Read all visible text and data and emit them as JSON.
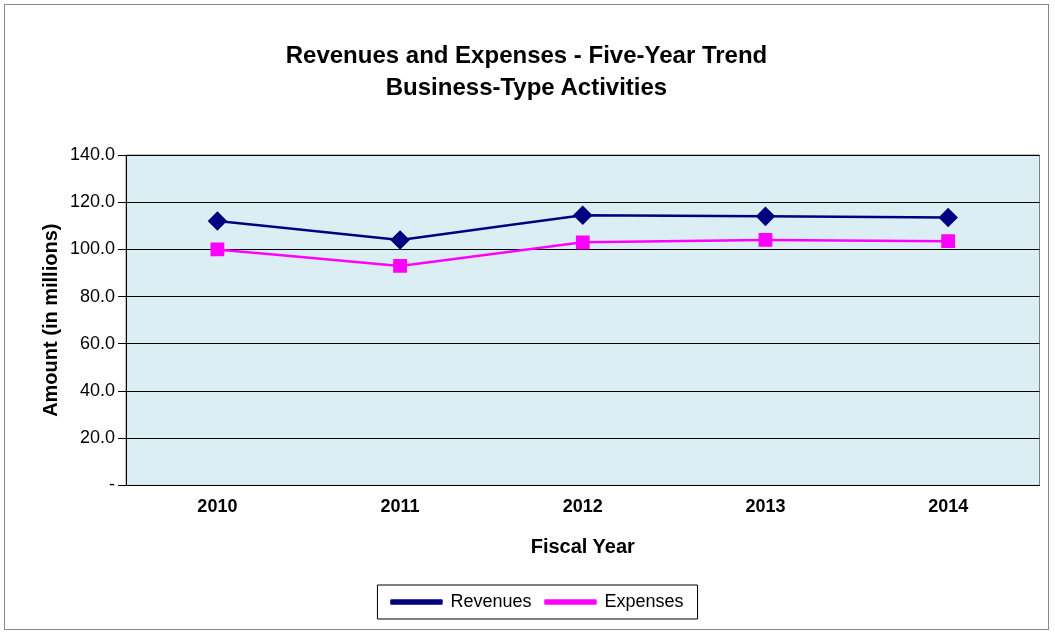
{
  "chart_data": {
    "type": "line",
    "title": "Revenues and Expenses - Five-Year Trend\nBusiness-Type  Activities",
    "xlabel": "Fiscal Year",
    "ylabel": "Amount (in millions)",
    "categories": [
      "2010",
      "2011",
      "2012",
      "2013",
      "2014"
    ],
    "series": [
      {
        "name": "Revenues",
        "color": "#000080",
        "marker": "diamond",
        "values": [
          112,
          104,
          114.5,
          114,
          113.5
        ]
      },
      {
        "name": "Expenses",
        "color": "#ff00ff",
        "marker": "square",
        "values": [
          100,
          93,
          103,
          104,
          103.5
        ]
      }
    ],
    "ylim": [
      0,
      140
    ],
    "yticks": [
      {
        "value": 0,
        "label": "-"
      },
      {
        "value": 20,
        "label": "20.0"
      },
      {
        "value": 40,
        "label": "40.0"
      },
      {
        "value": 60,
        "label": "60.0"
      },
      {
        "value": 80,
        "label": "80.0"
      },
      {
        "value": 100,
        "label": "100.0"
      },
      {
        "value": 120,
        "label": "120.0"
      },
      {
        "value": 140,
        "label": "140.0"
      }
    ],
    "grid": "y",
    "legend": "bottom",
    "line_style": "solid"
  }
}
